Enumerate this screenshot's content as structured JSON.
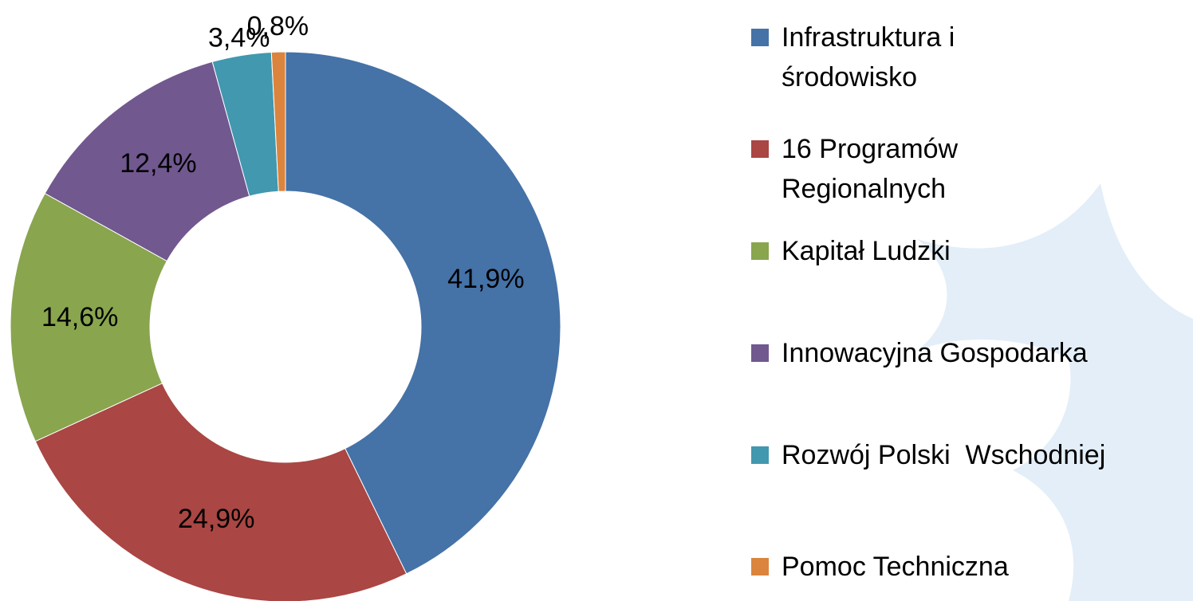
{
  "chart_data": {
    "type": "donut",
    "categories": [
      "Infrastruktura i środowisko",
      "16 Programów Regionalnych",
      "Kapitał Ludzki",
      "Innowacyjna Gospodarka",
      "Rozwój Polski  Wschodniej",
      "Pomoc Techniczna"
    ],
    "values": [
      41.9,
      24.9,
      14.6,
      12.4,
      3.4,
      0.8
    ],
    "value_labels": [
      "41,9%",
      "24,9%",
      "14,6%",
      "12,4%",
      "3,4%",
      "0,8%"
    ],
    "colors": [
      "#4572a7",
      "#aa4643",
      "#89a54e",
      "#71588f",
      "#4198af",
      "#db843d"
    ],
    "legend": "right"
  }
}
